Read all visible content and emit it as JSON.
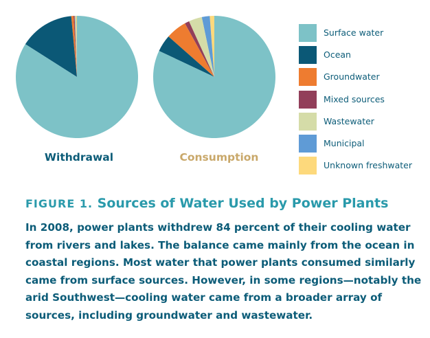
{
  "chart_data": [
    {
      "type": "pie",
      "title": "Withdrawal",
      "colors": [
        "#7dc2c7",
        "#0b5876",
        "#ee7c30",
        "#923f5a",
        "#d5dca8",
        "#5f9bd6",
        "#fdd97c"
      ],
      "slices": [
        {
          "label": "Surface water",
          "value": 84
        },
        {
          "label": "Ocean",
          "value": 14.5
        },
        {
          "label": "Groundwater",
          "value": 0.6
        },
        {
          "label": "Mixed sources",
          "value": 0.3
        },
        {
          "label": "Wastewater",
          "value": 0.3
        },
        {
          "label": "Municipal",
          "value": 0.1
        },
        {
          "label": "Unknown freshwater",
          "value": 0.2
        }
      ]
    },
    {
      "type": "pie",
      "title": "Consumption",
      "colors": [
        "#7dc2c7",
        "#0b5876",
        "#ee7c30",
        "#923f5a",
        "#d5dca8",
        "#5f9bd6",
        "#fdd97c"
      ],
      "slices": [
        {
          "label": "Surface water",
          "value": 82
        },
        {
          "label": "Ocean",
          "value": 4.5
        },
        {
          "label": "Groundwater",
          "value": 5.5
        },
        {
          "label": "Mixed sources",
          "value": 1.2
        },
        {
          "label": "Wastewater",
          "value": 3.5
        },
        {
          "label": "Municipal",
          "value": 2.1
        },
        {
          "label": "Unknown freshwater",
          "value": 1.2
        }
      ]
    }
  ],
  "legend": [
    {
      "label": "Surface water",
      "color": "#7dc2c7"
    },
    {
      "label": "Ocean",
      "color": "#0b5876"
    },
    {
      "label": "Groundwater",
      "color": "#ee7c30"
    },
    {
      "label": "Mixed sources",
      "color": "#923f5a"
    },
    {
      "label": "Wastewater",
      "color": "#d5dca8"
    },
    {
      "label": "Municipal",
      "color": "#5f9bd6"
    },
    {
      "label": "Unknown freshwater",
      "color": "#fdd97c"
    }
  ],
  "figure": {
    "number": "FIGURE 1.",
    "title": "Sources of Water Used by Power Plants",
    "caption": "In 2008, power plants withdrew 84 percent of their cooling water from rivers and lakes. The balance came mainly from the ocean in coastal regions. Most water that power plants consumed similarly came from surface sources. However, in some regions—notably the arid Southwest—cooling water came from a broader array of sources, including groundwater and wastewater."
  }
}
